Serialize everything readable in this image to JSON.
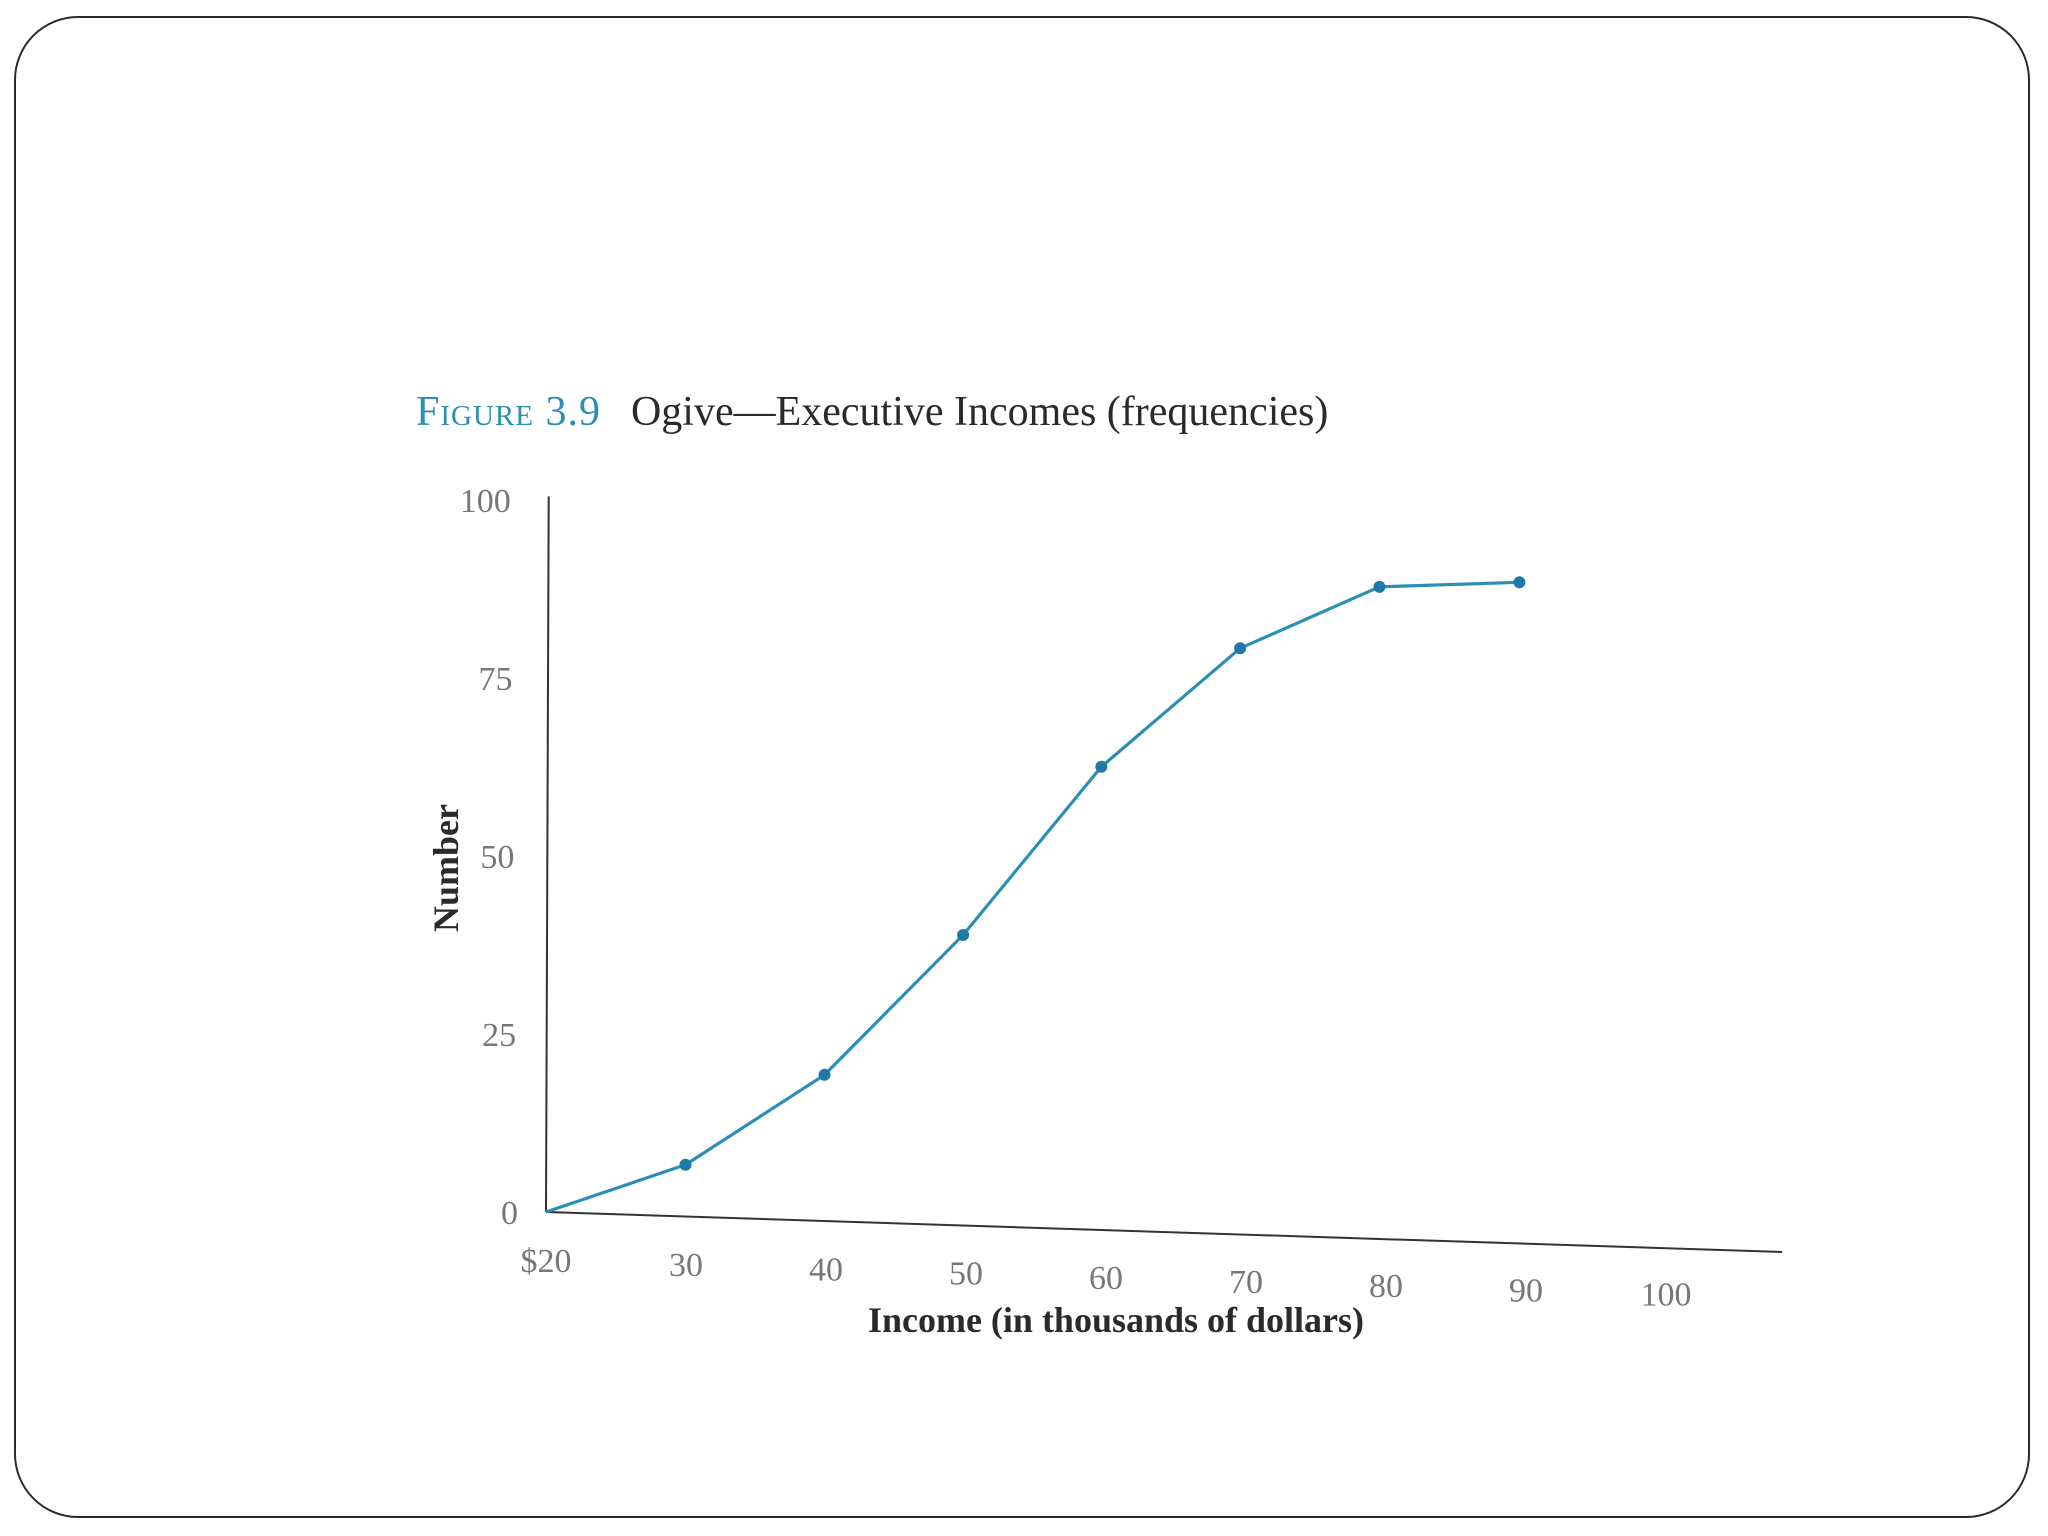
{
  "figure": {
    "label": "Figure 3.9",
    "title": "Ogive—Executive Incomes (frequencies)"
  },
  "chart_data": {
    "type": "line",
    "title": "Ogive—Executive Incomes (frequencies)",
    "xlabel": "Income (in thousands of dollars)",
    "ylabel": "Number",
    "x_ticks": [
      "$20",
      "30",
      "40",
      "50",
      "60",
      "70",
      "80",
      "90",
      "100"
    ],
    "x_tick_values": [
      20,
      30,
      40,
      50,
      60,
      70,
      80,
      90,
      100
    ],
    "y_ticks": [
      "0",
      "25",
      "50",
      "75",
      "100"
    ],
    "y_tick_values": [
      0,
      25,
      50,
      75,
      100
    ],
    "xlim": [
      20,
      108
    ],
    "ylim": [
      0,
      100
    ],
    "grid": false,
    "series": [
      {
        "x": [
          20,
          30,
          40,
          50,
          60,
          70,
          80,
          90
        ],
        "y": [
          0,
          7,
          20,
          40,
          64,
          81,
          90,
          91
        ],
        "color": "#2a8fb5",
        "markers": true
      }
    ]
  }
}
